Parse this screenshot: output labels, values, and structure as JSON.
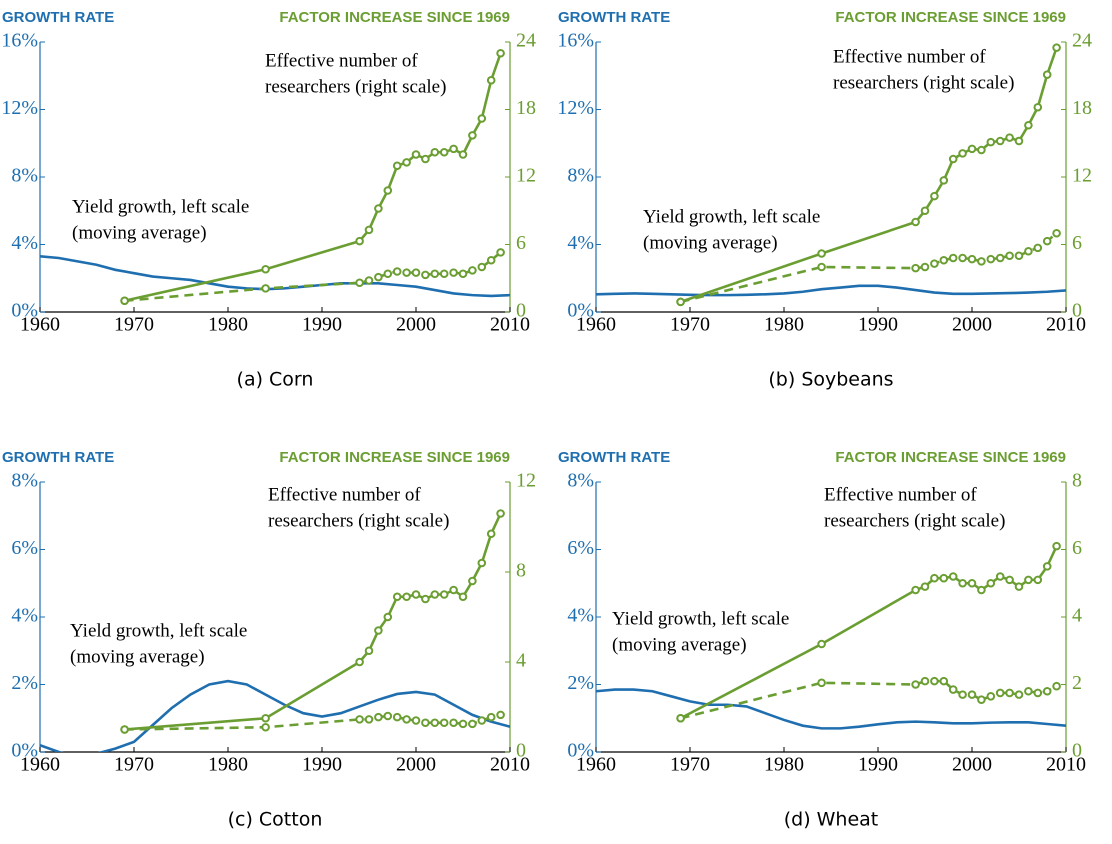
{
  "chart_data": [
    {
      "type": "line",
      "caption": "(a) Corn",
      "y_label": "GROWTH RATE",
      "y2_label": "FACTOR INCREASE SINCE 1969",
      "annotations": [
        [
          "Effective number of",
          "researchers (right scale)"
        ],
        [
          "Yield growth, left scale",
          "(moving average)"
        ]
      ],
      "xlim": [
        1960,
        2010
      ],
      "xticks": [
        1960,
        1970,
        1980,
        1990,
        2000,
        2010
      ],
      "ylim": [
        0,
        16
      ],
      "yticks": [
        {
          "value": 0,
          "label": "0%"
        },
        {
          "value": 4,
          "label": "4%"
        },
        {
          "value": 8,
          "label": "8%"
        },
        {
          "value": 12,
          "label": "12%"
        },
        {
          "value": 16,
          "label": "16%"
        }
      ],
      "y2lim": [
        0,
        24
      ],
      "y2ticks": [
        0,
        6,
        12,
        18,
        24
      ],
      "series": [
        {
          "color": "#1f6fb0",
          "axis": "y",
          "dashed": false,
          "marker": false,
          "x": [
            1960,
            1962,
            1964,
            1966,
            1968,
            1970,
            1972,
            1974,
            1976,
            1978,
            1980,
            1982,
            1984,
            1986,
            1988,
            1990,
            1992,
            1994,
            1996,
            1998,
            2000,
            2002,
            2004,
            2006,
            2008,
            2010
          ],
          "values": [
            3.3,
            3.2,
            3.0,
            2.8,
            2.5,
            2.3,
            2.1,
            2.0,
            1.9,
            1.7,
            1.5,
            1.4,
            1.35,
            1.4,
            1.5,
            1.6,
            1.7,
            1.7,
            1.7,
            1.6,
            1.5,
            1.3,
            1.1,
            1.0,
            0.95,
            1.0
          ]
        },
        {
          "color": "#6b9e32",
          "axis": "y2",
          "dashed": false,
          "marker": true,
          "x": [
            1969,
            1984,
            1994,
            1995,
            1996,
            1997,
            1998,
            1999,
            2000,
            2001,
            2002,
            2003,
            2004,
            2005,
            2006,
            2007,
            2008,
            2009
          ],
          "values": [
            1,
            3.8,
            6.3,
            7.3,
            9.2,
            10.8,
            13,
            13.3,
            14,
            13.6,
            14.2,
            14.2,
            14.5,
            14,
            15.7,
            17.2,
            20.6,
            23
          ]
        },
        {
          "color": "#6b9e32",
          "axis": "y2",
          "dashed": true,
          "marker": true,
          "x": [
            1969,
            1984,
            1994,
            1995,
            1996,
            1997,
            1998,
            1999,
            2000,
            2001,
            2002,
            2003,
            2004,
            2005,
            2006,
            2007,
            2008,
            2009
          ],
          "values": [
            1,
            2.1,
            2.6,
            2.8,
            3.1,
            3.4,
            3.6,
            3.5,
            3.5,
            3.3,
            3.4,
            3.4,
            3.5,
            3.4,
            3.7,
            4,
            4.6,
            5.3
          ]
        }
      ]
    },
    {
      "type": "line",
      "caption": "(b) Soybeans",
      "y_label": "GROWTH RATE",
      "y2_label": "FACTOR INCREASE SINCE 1969",
      "annotations": [
        [
          "Effective number of",
          "researchers (right scale)"
        ],
        [
          "Yield growth, left scale",
          "(moving average)"
        ]
      ],
      "xlim": [
        1960,
        2010
      ],
      "xticks": [
        1960,
        1970,
        1980,
        1990,
        2000,
        2010
      ],
      "ylim": [
        0,
        16
      ],
      "yticks": [
        {
          "value": 0,
          "label": "0%"
        },
        {
          "value": 4,
          "label": "4%"
        },
        {
          "value": 8,
          "label": "8%"
        },
        {
          "value": 12,
          "label": "12%"
        },
        {
          "value": 16,
          "label": "16%"
        }
      ],
      "y2lim": [
        0,
        24
      ],
      "y2ticks": [
        0,
        6,
        12,
        18,
        24
      ],
      "series": [
        {
          "color": "#1f6fb0",
          "axis": "y",
          "dashed": false,
          "marker": false,
          "x": [
            1960,
            1962,
            1964,
            1966,
            1968,
            1970,
            1972,
            1974,
            1976,
            1978,
            1980,
            1982,
            1984,
            1986,
            1988,
            1990,
            1992,
            1994,
            1996,
            1998,
            2000,
            2002,
            2004,
            2006,
            2008,
            2010
          ],
          "values": [
            1.05,
            1.08,
            1.1,
            1.08,
            1.05,
            1.02,
            1.0,
            1.0,
            1.02,
            1.05,
            1.1,
            1.2,
            1.35,
            1.45,
            1.55,
            1.55,
            1.45,
            1.3,
            1.15,
            1.08,
            1.08,
            1.1,
            1.12,
            1.15,
            1.2,
            1.28
          ]
        },
        {
          "color": "#6b9e32",
          "axis": "y2",
          "dashed": false,
          "marker": true,
          "x": [
            1969,
            1984,
            1994,
            1995,
            1996,
            1997,
            1998,
            1999,
            2000,
            2001,
            2002,
            2003,
            2004,
            2005,
            2006,
            2007,
            2008,
            2009
          ],
          "values": [
            0.9,
            5.2,
            8,
            9,
            10.3,
            11.7,
            13.6,
            14.1,
            14.5,
            14.4,
            15.1,
            15.2,
            15.5,
            15.2,
            16.6,
            18.2,
            21.1,
            23.5
          ]
        },
        {
          "color": "#6b9e32",
          "axis": "y2",
          "dashed": true,
          "marker": true,
          "x": [
            1969,
            1984,
            1994,
            1995,
            1996,
            1997,
            1998,
            1999,
            2000,
            2001,
            2002,
            2003,
            2004,
            2005,
            2006,
            2007,
            2008,
            2009
          ],
          "values": [
            0.9,
            4.0,
            3.9,
            4.0,
            4.3,
            4.6,
            4.8,
            4.8,
            4.7,
            4.5,
            4.7,
            4.8,
            5.0,
            5.0,
            5.4,
            5.7,
            6.3,
            7.0
          ]
        }
      ]
    },
    {
      "type": "line",
      "caption": "(c) Cotton",
      "y_label": "GROWTH RATE",
      "y2_label": "FACTOR INCREASE SINCE 1969",
      "annotations": [
        [
          "Effective number of",
          "researchers (right scale)"
        ],
        [
          "Yield growth, left scale",
          "(moving average)"
        ]
      ],
      "xlim": [
        1960,
        2010
      ],
      "xticks": [
        1960,
        1970,
        1980,
        1990,
        2000,
        2010
      ],
      "ylim": [
        0,
        8
      ],
      "yticks": [
        {
          "value": 0,
          "label": "0%"
        },
        {
          "value": 2,
          "label": "2%"
        },
        {
          "value": 4,
          "label": "4%"
        },
        {
          "value": 6,
          "label": "6%"
        },
        {
          "value": 8,
          "label": "8%"
        }
      ],
      "y2lim": [
        0,
        12
      ],
      "y2ticks": [
        0,
        4,
        8,
        12
      ],
      "series": [
        {
          "color": "#1f6fb0",
          "axis": "y",
          "dashed": false,
          "marker": false,
          "x": [
            1960,
            1962,
            1964,
            1966,
            1968,
            1970,
            1972,
            1974,
            1976,
            1978,
            1980,
            1982,
            1984,
            1986,
            1988,
            1990,
            1992,
            1994,
            1996,
            1998,
            2000,
            2002,
            2004,
            2006,
            2008,
            2010
          ],
          "values": [
            0.2,
            0.0,
            -0.15,
            -0.05,
            0.1,
            0.3,
            0.8,
            1.3,
            1.7,
            2.0,
            2.1,
            2.0,
            1.7,
            1.4,
            1.15,
            1.05,
            1.15,
            1.35,
            1.55,
            1.72,
            1.78,
            1.7,
            1.4,
            1.1,
            0.9,
            0.75
          ]
        },
        {
          "color": "#6b9e32",
          "axis": "y2",
          "dashed": false,
          "marker": true,
          "x": [
            1969,
            1984,
            1994,
            1995,
            1996,
            1997,
            1998,
            1999,
            2000,
            2001,
            2002,
            2003,
            2004,
            2005,
            2006,
            2007,
            2008,
            2009
          ],
          "values": [
            1,
            1.5,
            4,
            4.5,
            5.4,
            6,
            6.9,
            6.9,
            7,
            6.8,
            7,
            7,
            7.2,
            6.9,
            7.6,
            8.4,
            9.7,
            10.6
          ]
        },
        {
          "color": "#6b9e32",
          "axis": "y2",
          "dashed": true,
          "marker": true,
          "x": [
            1969,
            1984,
            1994,
            1995,
            1996,
            1997,
            1998,
            1999,
            2000,
            2001,
            2002,
            2003,
            2004,
            2005,
            2006,
            2007,
            2008,
            2009
          ],
          "values": [
            1.0,
            1.1,
            1.45,
            1.45,
            1.55,
            1.6,
            1.55,
            1.45,
            1.4,
            1.3,
            1.3,
            1.3,
            1.3,
            1.25,
            1.25,
            1.4,
            1.55,
            1.65
          ]
        }
      ]
    },
    {
      "type": "line",
      "caption": "(d) Wheat",
      "y_label": "GROWTH RATE",
      "y2_label": "FACTOR INCREASE SINCE 1969",
      "annotations": [
        [
          "Effective number of",
          "researchers (right scale)"
        ],
        [
          "Yield growth, left scale",
          "(moving average)"
        ]
      ],
      "xlim": [
        1960,
        2010
      ],
      "xticks": [
        1960,
        1970,
        1980,
        1990,
        2000,
        2010
      ],
      "ylim": [
        0,
        8
      ],
      "yticks": [
        {
          "value": 0,
          "label": "0%"
        },
        {
          "value": 2,
          "label": "2%"
        },
        {
          "value": 4,
          "label": "4%"
        },
        {
          "value": 6,
          "label": "6%"
        },
        {
          "value": 8,
          "label": "8%"
        }
      ],
      "y2lim": [
        0,
        8
      ],
      "y2ticks": [
        0,
        2,
        4,
        6,
        8
      ],
      "series": [
        {
          "color": "#1f6fb0",
          "axis": "y",
          "dashed": false,
          "marker": false,
          "x": [
            1960,
            1962,
            1964,
            1966,
            1968,
            1970,
            1972,
            1974,
            1976,
            1978,
            1980,
            1982,
            1984,
            1986,
            1988,
            1990,
            1992,
            1994,
            1996,
            1998,
            2000,
            2002,
            2004,
            2006,
            2008,
            2010
          ],
          "values": [
            1.8,
            1.85,
            1.85,
            1.8,
            1.65,
            1.5,
            1.4,
            1.4,
            1.35,
            1.15,
            0.95,
            0.78,
            0.7,
            0.7,
            0.75,
            0.82,
            0.88,
            0.9,
            0.88,
            0.85,
            0.85,
            0.87,
            0.88,
            0.88,
            0.83,
            0.78
          ]
        },
        {
          "color": "#6b9e32",
          "axis": "y2",
          "dashed": false,
          "marker": true,
          "x": [
            1969,
            1984,
            1994,
            1995,
            1996,
            1997,
            1998,
            1999,
            2000,
            2001,
            2002,
            2003,
            2004,
            2005,
            2006,
            2007,
            2008,
            2009
          ],
          "values": [
            1,
            3.2,
            4.8,
            4.9,
            5.15,
            5.15,
            5.2,
            5,
            5,
            4.8,
            5,
            5.2,
            5.1,
            4.9,
            5.1,
            5.1,
            5.5,
            6.1
          ]
        },
        {
          "color": "#6b9e32",
          "axis": "y2",
          "dashed": true,
          "marker": true,
          "x": [
            1969,
            1984,
            1994,
            1995,
            1996,
            1997,
            1998,
            1999,
            2000,
            2001,
            2002,
            2003,
            2004,
            2005,
            2006,
            2007,
            2008,
            2009
          ],
          "values": [
            1,
            2.05,
            2,
            2.1,
            2.1,
            2.1,
            1.85,
            1.7,
            1.7,
            1.55,
            1.65,
            1.75,
            1.75,
            1.7,
            1.8,
            1.75,
            1.8,
            1.95
          ]
        }
      ]
    }
  ]
}
